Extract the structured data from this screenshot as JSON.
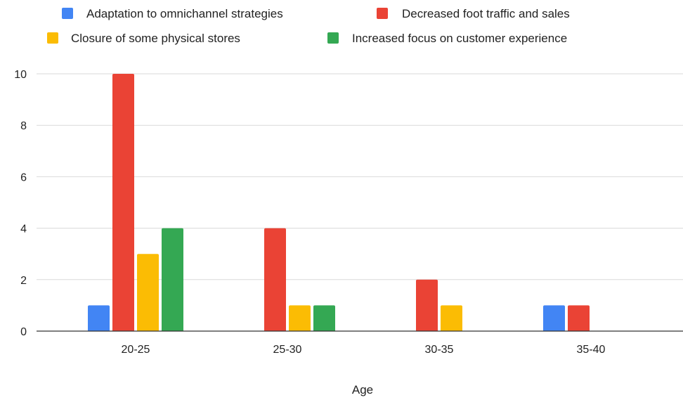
{
  "chart_data": {
    "type": "bar",
    "title": "",
    "xlabel": "Age",
    "ylabel": "",
    "categories": [
      "20-25",
      "25-30",
      "30-35",
      "35-40"
    ],
    "yticks": [
      "0",
      "2",
      "4",
      "6",
      "8",
      "10"
    ],
    "ylim": [
      0,
      10
    ],
    "grid": true,
    "legend_position": "top",
    "series": [
      {
        "name": "Adaptation to omnichannel strategies",
        "color": "#4285F4",
        "values": [
          1,
          0,
          0,
          1
        ]
      },
      {
        "name": "Decreased foot traffic and sales",
        "color": "#EA4335",
        "values": [
          10,
          4,
          2,
          1
        ]
      },
      {
        "name": "Closure of some physical stores",
        "color": "#FBBC04",
        "values": [
          3,
          1,
          1,
          0
        ]
      },
      {
        "name": "Increased focus on customer experience",
        "color": "#34A853",
        "values": [
          4,
          1,
          0,
          0
        ]
      }
    ]
  }
}
